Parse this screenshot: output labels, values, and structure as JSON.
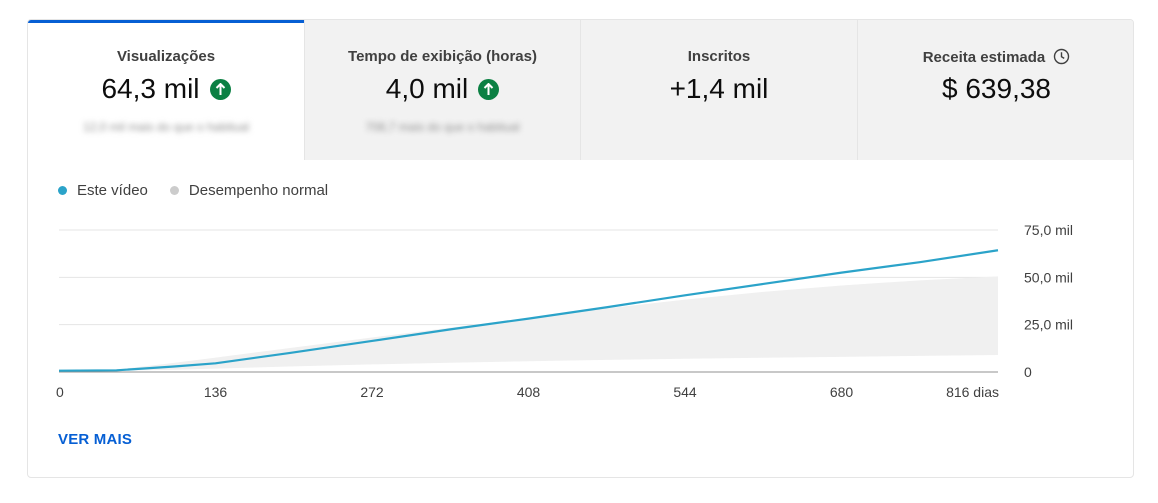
{
  "tabs": [
    {
      "title": "Visualizações",
      "value": "64,3 mil",
      "trend": "up",
      "subtitle": "12,0 mil mais do que o habitual"
    },
    {
      "title": "Tempo de exibição (horas)",
      "value": "4,0 mil",
      "trend": "up",
      "subtitle": "708,7 mais do que o habitual"
    },
    {
      "title": "Inscritos",
      "value": "+1,4 mil",
      "trend": "",
      "subtitle": ""
    },
    {
      "title": "Receita estimada",
      "value": "$ 639,38",
      "trend": "",
      "subtitle": "",
      "icon": "clock-icon"
    }
  ],
  "legend": [
    {
      "label": "Este vídeo",
      "color": "#2ba3c9"
    },
    {
      "label": "Desempenho normal",
      "color": "#cccccc"
    }
  ],
  "colors": {
    "accent": "#065fd4",
    "line": "#2ba3c9",
    "band": "#f0f0f0",
    "up": "#0b8043"
  },
  "chart_data": {
    "type": "line",
    "xlabel": "",
    "ylabel": "",
    "x_ticks": [
      {
        "value": 0,
        "label": "0"
      },
      {
        "value": 136,
        "label": "136"
      },
      {
        "value": 272,
        "label": "272"
      },
      {
        "value": 408,
        "label": "408"
      },
      {
        "value": 544,
        "label": "544"
      },
      {
        "value": 680,
        "label": "680"
      },
      {
        "value": 816,
        "label": "816 dias"
      }
    ],
    "y_ticks": [
      {
        "value": 0,
        "label": "0"
      },
      {
        "value": 25000,
        "label": "25,0 mil"
      },
      {
        "value": 50000,
        "label": "50,0 mil"
      },
      {
        "value": 75000,
        "label": "75,0 mil"
      }
    ],
    "xlim": [
      0,
      816
    ],
    "ylim": [
      0,
      75000
    ],
    "y_axis_position": "right",
    "grid": true,
    "series": [
      {
        "name": "Este vídeo",
        "x": [
          0,
          50,
          100,
          136,
          200,
          272,
          340,
          408,
          476,
          544,
          612,
          680,
          748,
          816
        ],
        "values": [
          700,
          900,
          2900,
          4600,
          10000,
          16400,
          22500,
          28200,
          34200,
          40500,
          46500,
          52500,
          58000,
          64300
        ]
      },
      {
        "name": "Desempenho normal",
        "type": "band",
        "x": [
          0,
          50,
          100,
          136,
          200,
          272,
          340,
          408,
          476,
          544,
          612,
          680,
          748,
          816
        ],
        "low": [
          500,
          700,
          1200,
          1800,
          2900,
          4000,
          4900,
          5700,
          6400,
          7000,
          7500,
          8000,
          8500,
          9000
        ],
        "high": [
          800,
          1300,
          4800,
          7600,
          12600,
          18200,
          23400,
          28600,
          33600,
          38200,
          42300,
          45700,
          48400,
          50500
        ]
      }
    ]
  },
  "footer": {
    "ver_mais": "VER MAIS"
  }
}
